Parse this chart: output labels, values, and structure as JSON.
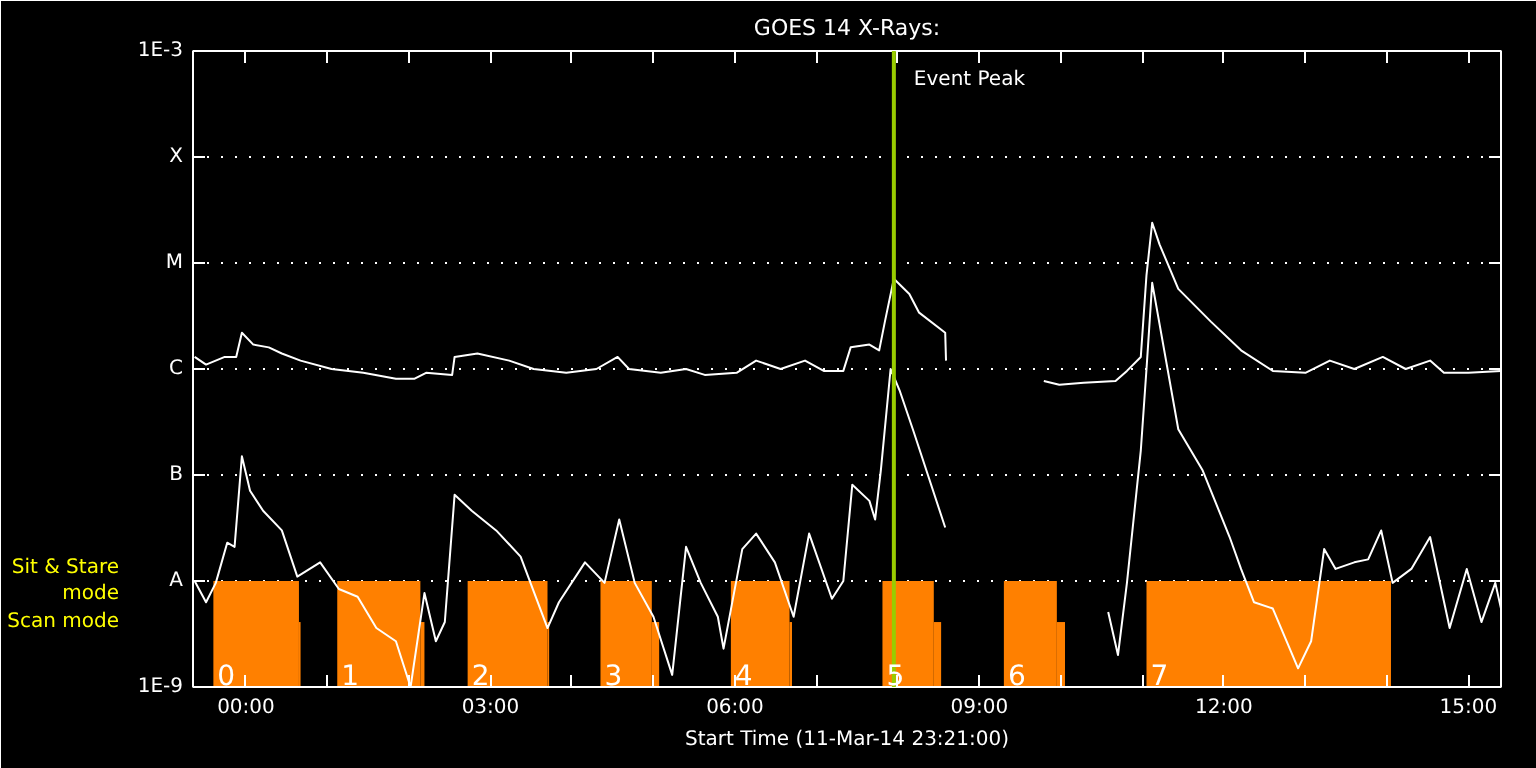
{
  "chart_data": {
    "type": "line",
    "title": "GOES 14 X-Rays:",
    "xlabel": "Start Time (11-Mar-14 23:21:00)",
    "log": true,
    "grid": "y",
    "xlim": [
      -0.65,
      15.4
    ],
    "ylim": [
      1e-09,
      0.001
    ],
    "xticks": [
      {
        "value": 0,
        "label": "00:00"
      },
      {
        "value": 1,
        "label": null
      },
      {
        "value": 2,
        "label": null
      },
      {
        "value": 3,
        "label": "03:00"
      },
      {
        "value": 4,
        "label": null
      },
      {
        "value": 5,
        "label": null
      },
      {
        "value": 6,
        "label": "06:00"
      },
      {
        "value": 7,
        "label": null
      },
      {
        "value": 8,
        "label": null
      },
      {
        "value": 9,
        "label": "09:00"
      },
      {
        "value": 10,
        "label": null
      },
      {
        "value": 11,
        "label": null
      },
      {
        "value": 12,
        "label": "12:00"
      },
      {
        "value": 13,
        "label": null
      },
      {
        "value": 14,
        "label": null
      },
      {
        "value": 15,
        "label": "15:00"
      }
    ],
    "yticks": [
      {
        "value": 1e-09,
        "label": "1E-9"
      },
      {
        "value": 1e-08,
        "label": "A"
      },
      {
        "value": 1e-07,
        "label": "B"
      },
      {
        "value": 1e-06,
        "label": "C"
      },
      {
        "value": 1e-05,
        "label": "M"
      },
      {
        "value": 0.0001,
        "label": "X"
      },
      {
        "value": 0.001,
        "label": "1E-3"
      }
    ],
    "ref_lines": [
      {
        "axis": "x",
        "value": 7.95,
        "label": "Event Peak",
        "color": "#99cc00"
      }
    ],
    "annotations": [
      "Sit & Stare\nmode",
      "Scan mode",
      "0",
      "1",
      "2",
      "3",
      "4",
      "5",
      "6",
      "7"
    ],
    "series": [
      {
        "type": "area",
        "color": "#ff8000",
        "x": [
          -0.4,
          0.65,
          0.67,
          1.12,
          2.14,
          2.19,
          2.72,
          3.7,
          3.72,
          4.35,
          4.98,
          5.07,
          5.95,
          6.67,
          6.7,
          7.81,
          8.44,
          8.53,
          9.3,
          9.95,
          10.05,
          11.05,
          14.05
        ],
        "values": [
          1e-08,
          4.1e-09,
          null,
          1e-08,
          4.1e-09,
          null,
          1e-08,
          4.1e-09,
          null,
          1e-08,
          4.1e-09,
          null,
          1e-08,
          4.1e-09,
          null,
          1e-08,
          4.1e-09,
          null,
          1e-08,
          4.1e-09,
          null,
          1e-08,
          1e-08
        ]
      },
      {
        "color": "#ffffff",
        "x": [
          -0.63,
          -0.49,
          -0.26,
          -0.12,
          -0.05,
          0.09,
          0.28,
          0.44,
          0.67,
          1.05,
          1.44,
          1.84,
          2.07,
          2.21,
          2.53,
          2.56,
          2.84,
          3.23,
          3.53,
          3.93,
          4.3,
          4.56,
          4.7,
          5.09,
          5.4,
          5.63,
          6.02,
          6.26,
          6.56,
          6.86,
          7.09,
          7.33,
          7.42,
          7.65,
          7.77,
          7.84,
          7.95,
          8.14,
          8.26,
          8.58,
          8.59,
          9.0,
          9.79,
          9.98,
          10.28,
          10.67,
          10.81,
          10.98,
          11.05,
          11.12,
          11.21,
          11.44,
          11.84,
          12.21,
          12.6,
          13.0,
          13.3,
          13.6,
          13.95,
          14.23,
          14.53,
          14.7,
          15.0,
          15.4
        ],
        "values": [
          1.3e-06,
          1.1e-06,
          1.3e-06,
          1.3e-06,
          2.2e-06,
          1.7e-06,
          1.6e-06,
          1.4e-06,
          1.2e-06,
          1e-06,
          9.2e-07,
          8.1e-07,
          8.1e-07,
          9.2e-07,
          8.8e-07,
          1.3e-06,
          1.4e-06,
          1.2e-06,
          1e-06,
          9.2e-07,
          1e-06,
          1.3e-06,
          1e-06,
          9.2e-07,
          1e-06,
          8.8e-07,
          9.2e-07,
          1.2e-06,
          1e-06,
          1.2e-06,
          9.6e-07,
          9.6e-07,
          1.6e-06,
          1.7e-06,
          1.5e-06,
          2.8e-06,
          7.1e-06,
          5.1e-06,
          3.4e-06,
          2.2e-06,
          1.2e-06,
          null,
          7.7e-07,
          7.1e-07,
          7.4e-07,
          7.7e-07,
          9.6e-07,
          1.3e-06,
          7.7e-06,
          2.4e-05,
          1.5e-05,
          5.7e-06,
          2.8e-06,
          1.5e-06,
          9.6e-07,
          9.2e-07,
          1.2e-06,
          1e-06,
          1.3e-06,
          1e-06,
          1.2e-06,
          9.2e-07,
          9.2e-07,
          9.6e-07
        ]
      },
      {
        "color": "#ffffff",
        "x": [
          -0.63,
          -0.49,
          -0.37,
          -0.23,
          -0.14,
          -0.05,
          0.05,
          0.21,
          0.44,
          0.63,
          0.91,
          1.14,
          1.37,
          1.6,
          1.84,
          2.02,
          2.19,
          2.33,
          2.44,
          2.56,
          2.77,
          3.07,
          3.37,
          3.7,
          3.84,
          4.16,
          4.4,
          4.58,
          4.77,
          5.0,
          5.23,
          5.4,
          5.58,
          5.79,
          5.86,
          6.09,
          6.26,
          6.49,
          6.72,
          6.91,
          7.19,
          7.33,
          7.44,
          7.65,
          7.72,
          7.79,
          7.91,
          8.02,
          8.19,
          8.58,
          9.0,
          10.58,
          10.7,
          10.81,
          10.98,
          11.05,
          11.12,
          11.44,
          11.74,
          12.07,
          12.21,
          12.37,
          12.6,
          12.77,
          12.91,
          13.07,
          13.23,
          13.37,
          13.6,
          13.77,
          13.93,
          14.07,
          14.3,
          14.53,
          14.77,
          14.98,
          15.16,
          15.33,
          15.4
        ],
        "values": [
          1e-08,
          6.3e-09,
          9.6e-09,
          2.3e-08,
          2.1e-08,
          1.5e-07,
          7.1e-08,
          4.6e-08,
          3e-08,
          1.1e-08,
          1.5e-08,
          8.4e-09,
          7.1e-09,
          3.6e-09,
          2.7e-09,
          1e-09,
          7.7e-09,
          2.7e-09,
          4.1e-09,
          6.5e-08,
          4.6e-08,
          3e-08,
          1.7e-08,
          3.6e-09,
          6.3e-09,
          1.5e-08,
          9.6e-09,
          3.8e-08,
          9.6e-09,
          4.6e-09,
          1.3e-09,
          2.1e-08,
          9.6e-09,
          4.6e-09,
          2.3e-09,
          2e-08,
          2.8e-08,
          1.5e-08,
          4.6e-09,
          2.8e-08,
          6.8e-09,
          1e-08,
          8.1e-08,
          5.7e-08,
          3.8e-08,
          1.1e-07,
          1e-06,
          6.3e-07,
          2.6e-07,
          3.2e-08,
          null,
          5.1e-09,
          2e-09,
          9.6e-09,
          1.7e-07,
          1e-06,
          6.5e-06,
          2.7e-07,
          1.1e-07,
          2.6e-08,
          1.3e-08,
          6.3e-09,
          5.5e-09,
          2.7e-09,
          1.5e-09,
          2.7e-09,
          2e-08,
          1.3e-08,
          1.5e-08,
          1.6e-08,
          3e-08,
          9.6e-09,
          1.3e-08,
          2.6e-08,
          3.6e-09,
          1.3e-08,
          4.1e-09,
          9.6e-09,
          5.5e-09
        ]
      }
    ]
  }
}
